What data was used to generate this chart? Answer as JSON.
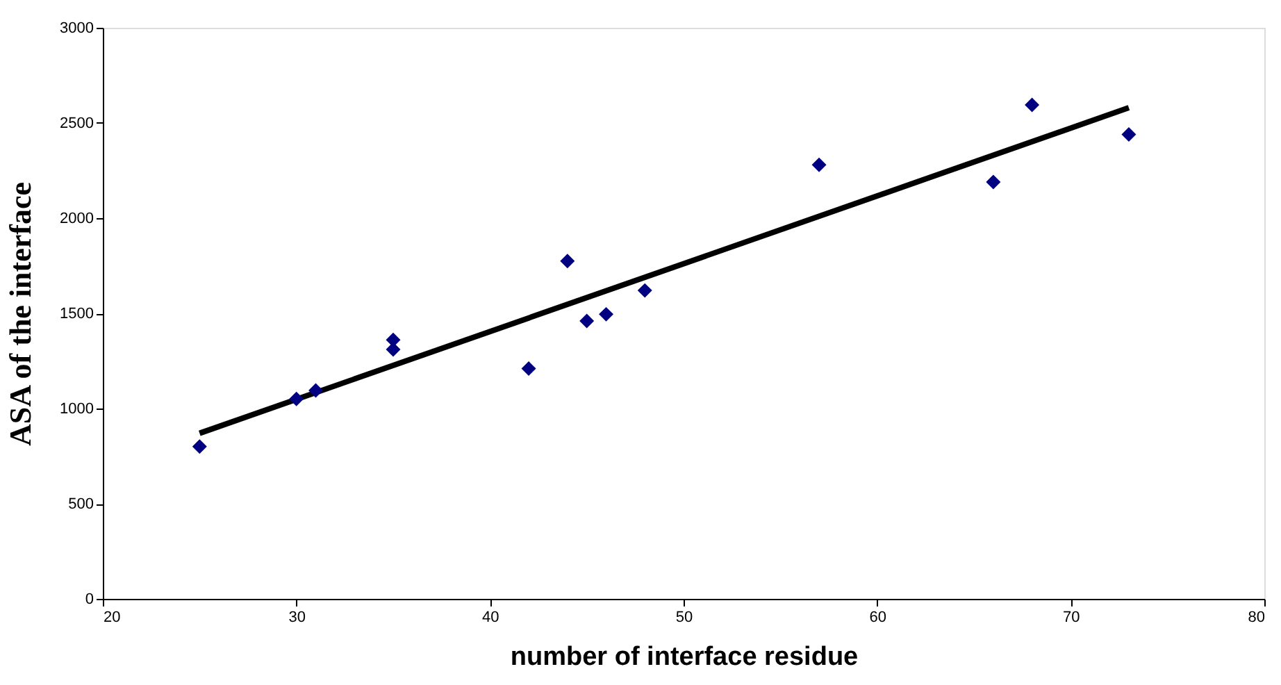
{
  "chart_data": {
    "type": "scatter",
    "xlabel": "number of interface residue",
    "ylabel": "ASA of the interface",
    "xlim": [
      20,
      80
    ],
    "xticks": [
      20,
      30,
      40,
      50,
      60,
      70,
      80
    ],
    "ylim": [
      0,
      3000
    ],
    "yticks": [
      0,
      500,
      1000,
      1500,
      2000,
      2500,
      3000
    ],
    "grid": false,
    "series": [
      {
        "marker": "diamond",
        "color": "#000080",
        "x": [
          25,
          30,
          31,
          35,
          35,
          42,
          44,
          45,
          46,
          48,
          57,
          66,
          68,
          73
        ],
        "values": [
          800,
          1050,
          1095,
          1360,
          1310,
          1210,
          1775,
          1460,
          1495,
          1620,
          2280,
          2190,
          2595,
          2440
        ]
      },
      {
        "type": "line",
        "marker": "none",
        "color": "#000000",
        "line_style": "solid",
        "x": [
          25,
          73
        ],
        "values": [
          870,
          2580
        ]
      }
    ]
  }
}
